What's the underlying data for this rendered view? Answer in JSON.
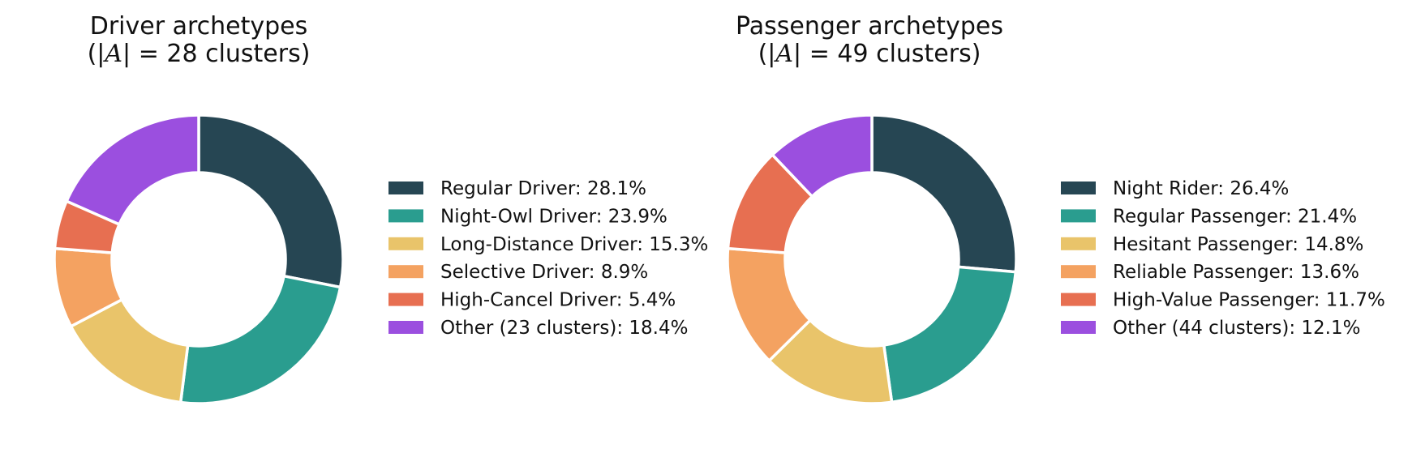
{
  "chart_data": [
    {
      "type": "pie",
      "donut": true,
      "title_line1": "Driver archetypes",
      "title_prefix": "(|",
      "title_var": "A",
      "title_suffix": "| = 28 clusters)",
      "slices": [
        {
          "label": "Regular Driver",
          "value": 28.1,
          "legend": "Regular Driver: 28.1%",
          "color": "#264653"
        },
        {
          "label": "Night-Owl Driver",
          "value": 23.9,
          "legend": "Night-Owl Driver: 23.9%",
          "color": "#2a9d8f"
        },
        {
          "label": "Long-Distance Driver",
          "value": 15.3,
          "legend": "Long-Distance Driver: 15.3%",
          "color": "#e9c46a"
        },
        {
          "label": "Selective Driver",
          "value": 8.9,
          "legend": "Selective Driver: 8.9%",
          "color": "#f4a261"
        },
        {
          "label": "High-Cancel Driver",
          "value": 5.4,
          "legend": "High-Cancel Driver: 5.4%",
          "color": "#e76f51"
        },
        {
          "label": "Other (23 clusters)",
          "value": 18.4,
          "legend": "Other (23 clusters): 18.4%",
          "color": "#9b4fdf"
        }
      ],
      "legend_position": "right"
    },
    {
      "type": "pie",
      "donut": true,
      "title_line1": "Passenger archetypes",
      "title_prefix": "(|",
      "title_var": "A",
      "title_suffix": "| = 49 clusters)",
      "slices": [
        {
          "label": "Night Rider",
          "value": 26.4,
          "legend": "Night Rider: 26.4%",
          "color": "#264653"
        },
        {
          "label": "Regular Passenger",
          "value": 21.4,
          "legend": "Regular Passenger: 21.4%",
          "color": "#2a9d8f"
        },
        {
          "label": "Hesitant Passenger",
          "value": 14.8,
          "legend": "Hesitant Passenger: 14.8%",
          "color": "#e9c46a"
        },
        {
          "label": "Reliable Passenger",
          "value": 13.6,
          "legend": "Reliable Passenger: 13.6%",
          "color": "#f4a261"
        },
        {
          "label": "High-Value Passenger",
          "value": 11.7,
          "legend": "High-Value Passenger: 11.7%",
          "color": "#e76f51"
        },
        {
          "label": "Other (44 clusters)",
          "value": 12.1,
          "legend": "Other (44 clusters): 12.1%",
          "color": "#9b4fdf"
        }
      ],
      "legend_position": "right"
    }
  ]
}
